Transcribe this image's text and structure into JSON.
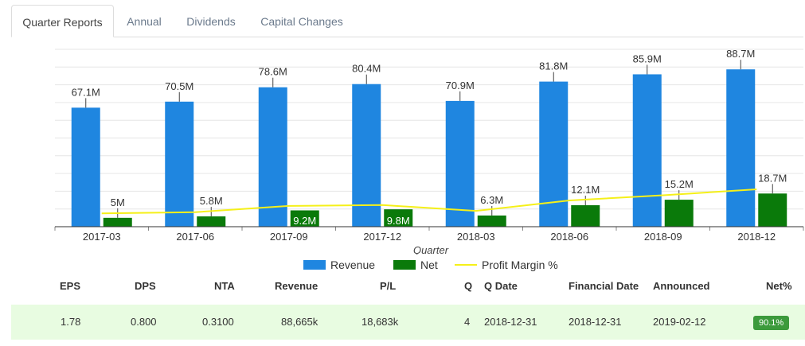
{
  "tabs": [
    {
      "label": "Quarter Reports",
      "active": true
    },
    {
      "label": "Annual",
      "active": false
    },
    {
      "label": "Dividends",
      "active": false
    },
    {
      "label": "Capital Changes",
      "active": false
    }
  ],
  "chart_data": {
    "type": "bar",
    "categories": [
      "2017-03",
      "2017-06",
      "2017-09",
      "2017-12",
      "2018-03",
      "2018-06",
      "2018-09",
      "2018-12"
    ],
    "xlabel": "Quarter",
    "series": [
      {
        "name": "Revenue",
        "type": "bar",
        "color": "#1f86e0",
        "values": [
          67.1,
          70.5,
          78.6,
          80.4,
          70.9,
          81.8,
          85.9,
          88.7
        ],
        "labels": [
          "67.1M",
          "70.5M",
          "78.6M",
          "80.4M",
          "70.9M",
          "81.8M",
          "85.9M",
          "88.7M"
        ]
      },
      {
        "name": "Net",
        "type": "bar",
        "color": "#0a7a0a",
        "values": [
          5,
          5.8,
          9.2,
          9.8,
          6.3,
          12.1,
          15.2,
          18.7
        ],
        "labels": [
          "5M",
          "5.8M",
          "9.2M",
          "9.8M",
          "6.3M",
          "12.1M",
          "15.2M",
          "18.7M"
        ]
      },
      {
        "name": "Profit Margin %",
        "type": "line",
        "color": "#f5f019",
        "values": [
          7.5,
          8.2,
          11.7,
          12.2,
          8.9,
          14.8,
          17.7,
          21.1
        ]
      }
    ],
    "ylim": [
      0,
      100
    ],
    "grid": true,
    "legend": "bottom"
  },
  "table": {
    "headers": [
      "EPS",
      "DPS",
      "NTA",
      "Revenue",
      "P/L",
      "Q",
      "Q Date",
      "Financial Date",
      "Announced",
      "Net%"
    ],
    "row": [
      "1.78",
      "0.800",
      "0.3100",
      "88,665k",
      "18,683k",
      "4",
      "2018-12-31",
      "2018-12-31",
      "2019-02-12",
      "90.1%"
    ]
  }
}
